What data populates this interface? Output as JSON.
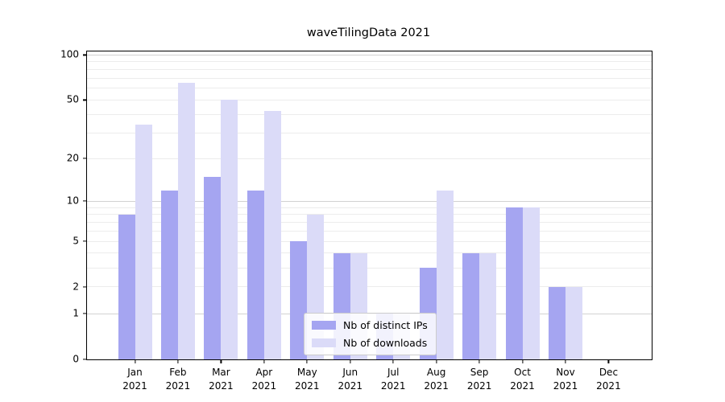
{
  "chart_data": {
    "type": "bar",
    "title": "waveTilingData 2021",
    "categories": [
      "Jan 2021",
      "Feb 2021",
      "Mar 2021",
      "Apr 2021",
      "May 2021",
      "Jun 2021",
      "Jul 2021",
      "Aug 2021",
      "Sep 2021",
      "Oct 2021",
      "Nov 2021",
      "Dec 2021"
    ],
    "month_labels": [
      "Jan",
      "Feb",
      "Mar",
      "Apr",
      "May",
      "Jun",
      "Jul",
      "Aug",
      "Sep",
      "Oct",
      "Nov",
      "Dec"
    ],
    "year_label": "2021",
    "series": [
      {
        "name": "Nb of distinct IPs",
        "color": "#a5a5f1",
        "values": [
          8,
          12,
          15,
          12,
          5,
          4,
          1,
          3,
          4,
          9,
          2,
          0
        ]
      },
      {
        "name": "Nb of downloads",
        "color": "#dbdbf8",
        "values": [
          34,
          65,
          50,
          42,
          8,
          4,
          1,
          12,
          4,
          9,
          2,
          0
        ]
      }
    ],
    "xlabel": "",
    "ylabel": "",
    "y_scale": "log1p",
    "y_tick_values": [
      0,
      1,
      2,
      5,
      10,
      20,
      50,
      100
    ],
    "y_tick_labels": [
      "0",
      "1",
      "2",
      "5",
      "10",
      "20",
      "50",
      "100"
    ],
    "y_minor_values": [
      3,
      4,
      6,
      7,
      8,
      9,
      30,
      40,
      60,
      70,
      80,
      90
    ],
    "y_major_grid_values": [
      1,
      10,
      100
    ],
    "ylim": [
      0,
      105.6
    ],
    "grid": "on",
    "legend_position": "lower center"
  },
  "colors": {
    "ips_bar": "#a5a5f1",
    "downloads_bar": "#dbdbf8",
    "grid_minor": "#ececec",
    "grid_major": "#d2d2d2",
    "spine": "#000000",
    "background": "#ffffff"
  }
}
